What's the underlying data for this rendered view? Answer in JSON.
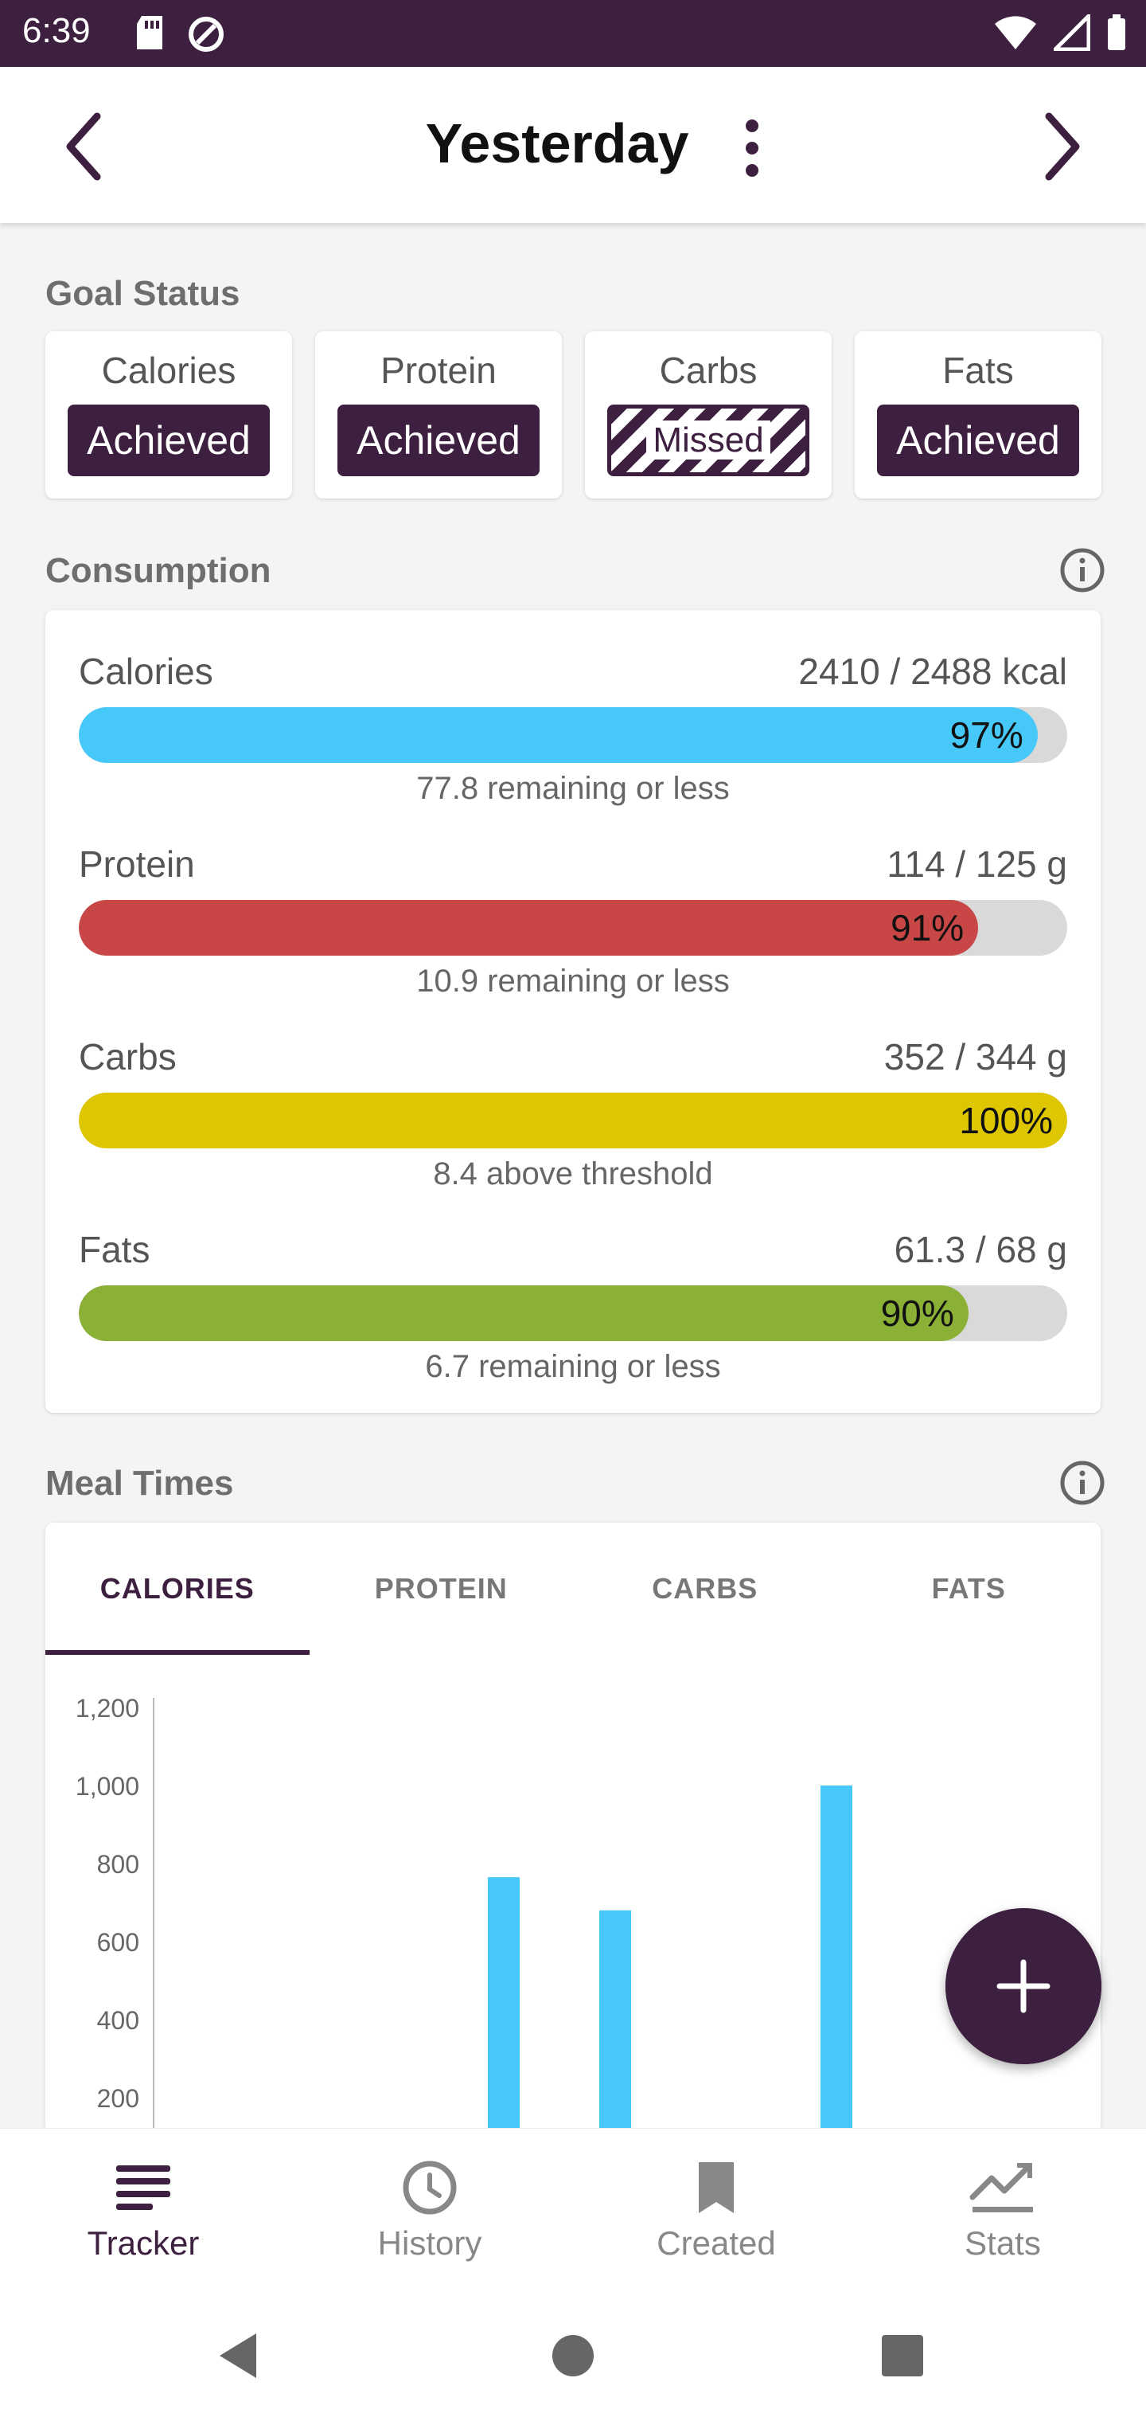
{
  "status_bar": {
    "time": "6:39"
  },
  "header": {
    "title": "Yesterday"
  },
  "goal_status": {
    "title": "Goal Status",
    "items": [
      {
        "name": "Calories",
        "status": "Achieved"
      },
      {
        "name": "Protein",
        "status": "Achieved"
      },
      {
        "name": "Carbs",
        "status": "Missed"
      },
      {
        "name": "Fats",
        "status": "Achieved"
      }
    ]
  },
  "consumption": {
    "title": "Consumption",
    "rows": [
      {
        "name": "Calories",
        "amount": "2410 / 2488 kcal",
        "percent_label": "97%",
        "fill": 0.97,
        "color": "#46c8f8",
        "note": "77.8 remaining or less"
      },
      {
        "name": "Protein",
        "amount": "114 / 125 g",
        "percent_label": "91%",
        "fill": 0.91,
        "color": "#c84646",
        "note": "10.9 remaining or less"
      },
      {
        "name": "Carbs",
        "amount": "352 / 344 g",
        "percent_label": "100%",
        "fill": 1.0,
        "color": "#dec701",
        "note": "8.4 above threshold"
      },
      {
        "name": "Fats",
        "amount": "61.3 / 68 g",
        "percent_label": "90%",
        "fill": 0.9,
        "color": "#8bb036",
        "note": "6.7 remaining or less"
      }
    ]
  },
  "meal_times": {
    "title": "Meal Times",
    "tabs": [
      "CALORIES",
      "PROTEIN",
      "CARBS",
      "FATS"
    ],
    "active_tab": 0
  },
  "chart_data": {
    "type": "bar",
    "y_ticks": [
      "1,200",
      "1,000",
      "800",
      "600",
      "400",
      "200"
    ],
    "ylim": [
      0,
      1200
    ],
    "values": [
      765,
      680,
      1000
    ],
    "color": "#46c8f8"
  },
  "bottom_nav": {
    "items": [
      {
        "label": "Tracker",
        "icon": "tracker-icon",
        "active": true
      },
      {
        "label": "History",
        "icon": "clock-icon",
        "active": false
      },
      {
        "label": "Created",
        "icon": "bookmark-icon",
        "active": false
      },
      {
        "label": "Stats",
        "icon": "stats-icon",
        "active": false
      }
    ]
  },
  "colors": {
    "primary": "#3d1f3f",
    "accent_calories": "#46c8f8",
    "accent_protein": "#c84646",
    "accent_carbs": "#dec701",
    "accent_fats": "#8bb036"
  }
}
